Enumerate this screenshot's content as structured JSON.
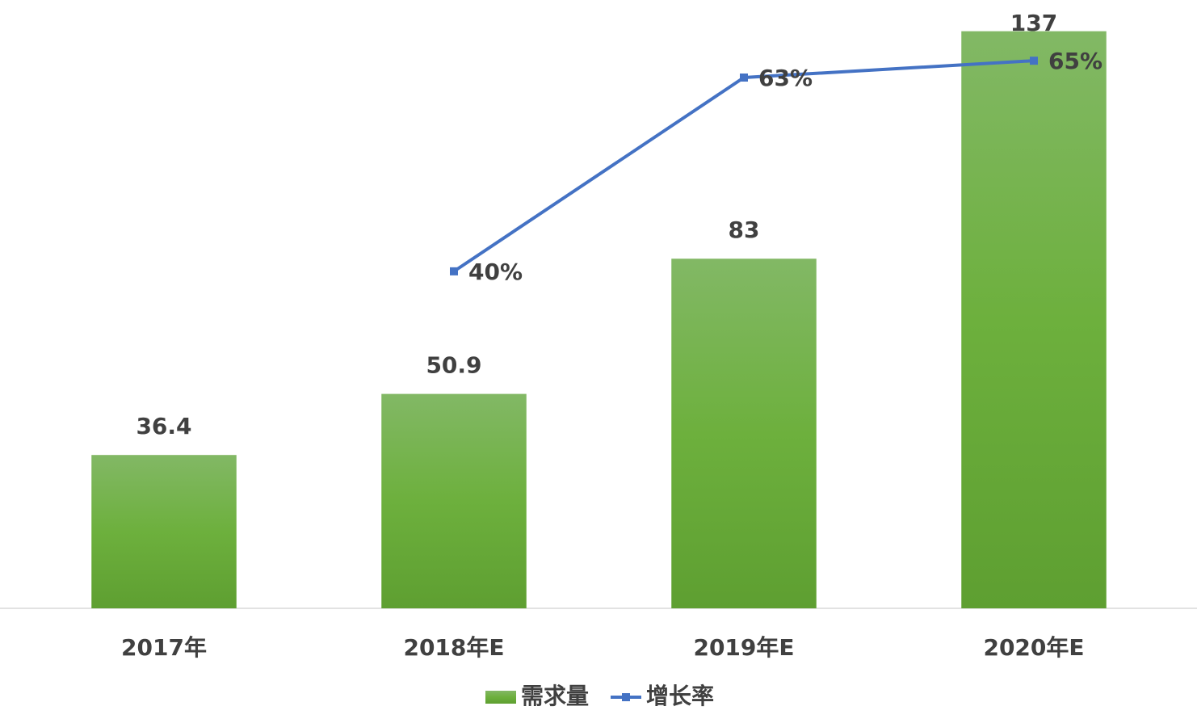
{
  "chart_data": {
    "type": "bar",
    "categories": [
      "2017年",
      "2018年E",
      "2019年E",
      "2020年E"
    ],
    "series": [
      {
        "name": "需求量",
        "type": "bar",
        "color": "#6aaa3a",
        "values": [
          36.4,
          50.9,
          83,
          137
        ]
      },
      {
        "name": "增长率",
        "type": "line",
        "axis": "y2",
        "color": "#4472c4",
        "values": [
          null,
          40,
          63,
          65
        ],
        "value_labels": [
          null,
          "40%",
          "63%",
          "65%"
        ]
      }
    ],
    "ylim": [
      0,
      140
    ],
    "y2lim": [
      0,
      70
    ],
    "legend": "bottom"
  }
}
